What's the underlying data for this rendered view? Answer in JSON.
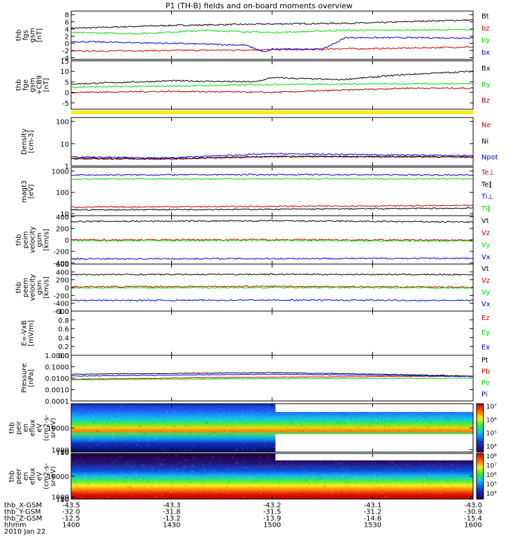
{
  "title": "P1 (TH-B) fields and on-board moments overview",
  "colors": {
    "black": "#000000",
    "red": "#d00000",
    "green": "#00e000",
    "blue": "#0000e0",
    "darkred": "#a00000",
    "yellow": "#ffee00"
  },
  "chart_data": [
    {
      "type": "line",
      "id": "fgs",
      "ylabel": [
        "thb",
        "fgs",
        "gsm",
        "[nT]"
      ],
      "ylim": [
        -4.5,
        9
      ],
      "ticks": [
        -4,
        -2,
        0,
        2,
        4,
        6,
        8
      ],
      "series": [
        {
          "name": "Bt",
          "color": "black",
          "x": [
            1400,
            1430,
            1500,
            1530,
            1545,
            1600
          ],
          "y": [
            4.2,
            5.0,
            5.4,
            5.7,
            6.2,
            6.5
          ]
        },
        {
          "name": "bz",
          "color": "red",
          "x": [
            1400,
            1430,
            1500,
            1520,
            1530,
            1600
          ],
          "y": [
            -2.2,
            -2.0,
            -1.8,
            -1.5,
            -1.5,
            -1.0
          ]
        },
        {
          "name": "by",
          "color": "green",
          "x": [
            1400,
            1420,
            1440,
            1500,
            1520,
            1600
          ],
          "y": [
            3.0,
            2.7,
            3.6,
            3.0,
            3.6,
            3.8
          ]
        },
        {
          "name": "bx",
          "color": "blue",
          "x": [
            1400,
            1430,
            1452,
            1458,
            1500,
            1515,
            1522,
            1600
          ],
          "y": [
            0.5,
            0.0,
            -0.5,
            -2.5,
            -1.6,
            -1.7,
            1.6,
            1.5
          ]
        }
      ]
    },
    {
      "type": "line",
      "id": "fge",
      "ylabel": [
        "thb",
        "fge",
        "gsm",
        "+CB9",
        "[nT]"
      ],
      "ylim": [
        -8,
        15
      ],
      "ticks": [
        -5,
        0,
        5,
        10,
        15
      ],
      "series": [
        {
          "name": "Bx",
          "color": "black",
          "x": [
            1400,
            1430,
            1455,
            1500,
            1520,
            1540,
            1600
          ],
          "y": [
            4.0,
            5.5,
            5.0,
            7.0,
            6.0,
            8.5,
            10.0
          ]
        },
        {
          "name": "By",
          "color": "green",
          "x": [
            1400,
            1430,
            1500,
            1600
          ],
          "y": [
            2.5,
            3.0,
            3.8,
            4.2
          ]
        },
        {
          "name": "Bz",
          "color": "darkred",
          "x": [
            1400,
            1430,
            1500,
            1540,
            1600
          ],
          "y": [
            0.0,
            0.5,
            0.0,
            2.0,
            2.0
          ]
        }
      ]
    },
    {
      "type": "line",
      "id": "density",
      "log": true,
      "ylabel": [
        "Density",
        "[cm-3]"
      ],
      "ylim": [
        1,
        150
      ],
      "ticks": [
        1,
        10,
        100
      ],
      "tick_labels": [
        "1",
        "10",
        "100"
      ],
      "series": [
        {
          "name": "Ne",
          "color": "red",
          "x": [
            1400,
            1430,
            1500,
            1600
          ],
          "y": [
            2.1,
            2.0,
            2.6,
            2.5
          ]
        },
        {
          "name": "Ni",
          "color": "black",
          "x": [
            1400,
            1430,
            1500,
            1600
          ],
          "y": [
            2.2,
            2.1,
            2.7,
            2.6
          ]
        },
        {
          "name": "Npot",
          "color": "blue",
          "x": [
            1400,
            1430,
            1500,
            1600
          ],
          "y": [
            2.5,
            2.3,
            3.5,
            2.9
          ]
        }
      ]
    },
    {
      "type": "line",
      "id": "temp",
      "log": true,
      "ylabel": [
        "magt3",
        "[eV]"
      ],
      "ylim": [
        8,
        1500
      ],
      "ticks": [
        10,
        100,
        1000
      ],
      "tick_labels": [
        "10",
        "100",
        "1000"
      ],
      "series": [
        {
          "name": "Te⊥",
          "color": "red",
          "x": [
            1400,
            1500,
            1600
          ],
          "y": [
            20,
            22,
            24
          ]
        },
        {
          "name": "Te∥",
          "color": "black",
          "x": [
            1400,
            1500,
            1600
          ],
          "y": [
            15,
            16,
            18
          ]
        },
        {
          "name": "Ti⊥",
          "color": "blue",
          "x": [
            1400,
            1500,
            1600
          ],
          "y": [
            650,
            680,
            650
          ]
        },
        {
          "name": "Ti∥",
          "color": "green",
          "x": [
            1400,
            1500,
            1600
          ],
          "y": [
            420,
            430,
            430
          ]
        }
      ]
    },
    {
      "type": "line",
      "id": "peim",
      "ylabel": [
        "thb",
        "peim",
        "velocity",
        "gsm",
        "[km/s]"
      ],
      "ylim": [
        -420,
        420
      ],
      "ticks": [
        -400,
        -200,
        0,
        200,
        400
      ],
      "series": [
        {
          "name": "Vt",
          "color": "black",
          "x": [
            1400,
            1500,
            1600
          ],
          "y": [
            320,
            330,
            310
          ]
        },
        {
          "name": "Vz",
          "color": "red",
          "x": [
            1400,
            1500,
            1600
          ],
          "y": [
            0,
            5,
            -5
          ]
        },
        {
          "name": "Vy",
          "color": "green",
          "x": [
            1400,
            1500,
            1600
          ],
          "y": [
            -15,
            -10,
            -20
          ]
        },
        {
          "name": "Vx",
          "color": "blue",
          "x": [
            1400,
            1500,
            1600
          ],
          "y": [
            -330,
            -325,
            -320
          ]
        }
      ]
    },
    {
      "type": "line",
      "id": "peem",
      "ylabel": [
        "thb",
        "peem",
        "velocity",
        "gsm",
        "[km/s]"
      ],
      "ylim": [
        -600,
        600
      ],
      "ticks": [
        -600,
        -400,
        -200,
        0,
        200,
        400,
        600
      ],
      "series": [
        {
          "name": "Vt",
          "color": "black",
          "x": [
            1400,
            1500,
            1600
          ],
          "y": [
            330,
            340,
            330
          ]
        },
        {
          "name": "Vz",
          "color": "red",
          "x": [
            1400,
            1500,
            1600
          ],
          "y": [
            20,
            30,
            10
          ]
        },
        {
          "name": "Vy",
          "color": "green",
          "x": [
            1400,
            1500,
            1600
          ],
          "y": [
            -10,
            0,
            -10
          ]
        },
        {
          "name": "Vx",
          "color": "blue",
          "x": [
            1400,
            1500,
            1600
          ],
          "y": [
            -330,
            -320,
            -330
          ]
        }
      ]
    },
    {
      "type": "line",
      "id": "efield",
      "ylabel": [
        "E=-VxB",
        "[mV/m]"
      ],
      "ylim": [
        0,
        1.0
      ],
      "ticks": [
        0,
        0.2,
        0.4,
        0.6,
        0.8,
        1.0
      ],
      "tick_labels": [
        "0.0",
        "0.2",
        "0.4",
        "0.6",
        "0.8",
        "1.0"
      ],
      "series": [
        {
          "name": "Ez",
          "color": "red",
          "x": [],
          "y": []
        },
        {
          "name": "Ey",
          "color": "green",
          "x": [],
          "y": []
        },
        {
          "name": "Ex",
          "color": "blue",
          "x": [],
          "y": []
        }
      ]
    },
    {
      "type": "line",
      "id": "pressure",
      "log": true,
      "ylabel": [
        "Pressure",
        "[nPa]"
      ],
      "ylim": [
        0.0001,
        1.0
      ],
      "ticks": [
        0.0001,
        0.001,
        0.01,
        0.1,
        1.0
      ],
      "tick_labels": [
        "0.0001",
        "0.0010",
        "0.0100",
        "0.1000",
        "1.0000"
      ],
      "series": [
        {
          "name": "Pt",
          "color": "black",
          "x": [
            1400,
            1500,
            1600
          ],
          "y": [
            0.022,
            0.03,
            0.015
          ]
        },
        {
          "name": "Pb",
          "color": "red",
          "x": [
            1400,
            1500,
            1600
          ],
          "y": [
            0.008,
            0.012,
            0.015
          ]
        },
        {
          "name": "Pe",
          "color": "green",
          "x": [
            1400,
            1500,
            1600
          ],
          "y": [
            0.007,
            0.009,
            0.01
          ]
        },
        {
          "name": "Pi",
          "color": "blue",
          "x": [
            1400,
            1500,
            1600
          ],
          "y": [
            0.015,
            0.022,
            0.014
          ]
        }
      ]
    },
    {
      "type": "heatmap",
      "id": "peir",
      "ylabel": [
        "thb",
        "peir",
        "en",
        "eflux",
        "eV",
        "(cm2-s-",
        "sr-eV)"
      ],
      "ylim": [
        6,
        20000
      ],
      "ticks": [
        10,
        100,
        1000,
        10000
      ],
      "tick_labels": [
        "10",
        "100",
        "1000",
        "10000"
      ],
      "colorbar": {
        "ticks": [
          "10⁴",
          "10⁵",
          "10⁶",
          "10⁷"
        ]
      }
    },
    {
      "type": "heatmap",
      "id": "peer",
      "ylabel": [
        "thb",
        "peer",
        "en",
        "eflux",
        "eV",
        "(cm2-s-",
        "sr-eV)"
      ],
      "ylim": [
        7,
        20000
      ],
      "ticks": [
        10,
        100,
        1000,
        10000
      ],
      "tick_labels": [
        "10",
        "100",
        "1000",
        "10000"
      ],
      "colorbar": {
        "ticks": [
          "10⁴",
          "10⁵",
          "10⁶",
          "10⁷",
          "10⁸"
        ]
      }
    }
  ],
  "xaxis": {
    "times": [
      1400,
      1430,
      1500,
      1530,
      1600
    ],
    "rows": [
      {
        "label": "thb_X-GSM",
        "values": [
          "-43.5",
          "-43.3",
          "-43.2",
          "-43.1",
          "-43.0"
        ]
      },
      {
        "label": "thb_Y-GSM",
        "values": [
          "-32.0",
          "-31.8",
          "-31.5",
          "-31.2",
          "-30.9"
        ]
      },
      {
        "label": "thb_Z-GSM",
        "values": [
          "-12.5",
          "-13.2",
          "-13.9",
          "-14.6",
          "-15.4"
        ]
      },
      {
        "label": "hhmm",
        "values": [
          "1400",
          "1430",
          "1500",
          "1530",
          "1600"
        ]
      }
    ],
    "date": "2010 Jan 22"
  }
}
